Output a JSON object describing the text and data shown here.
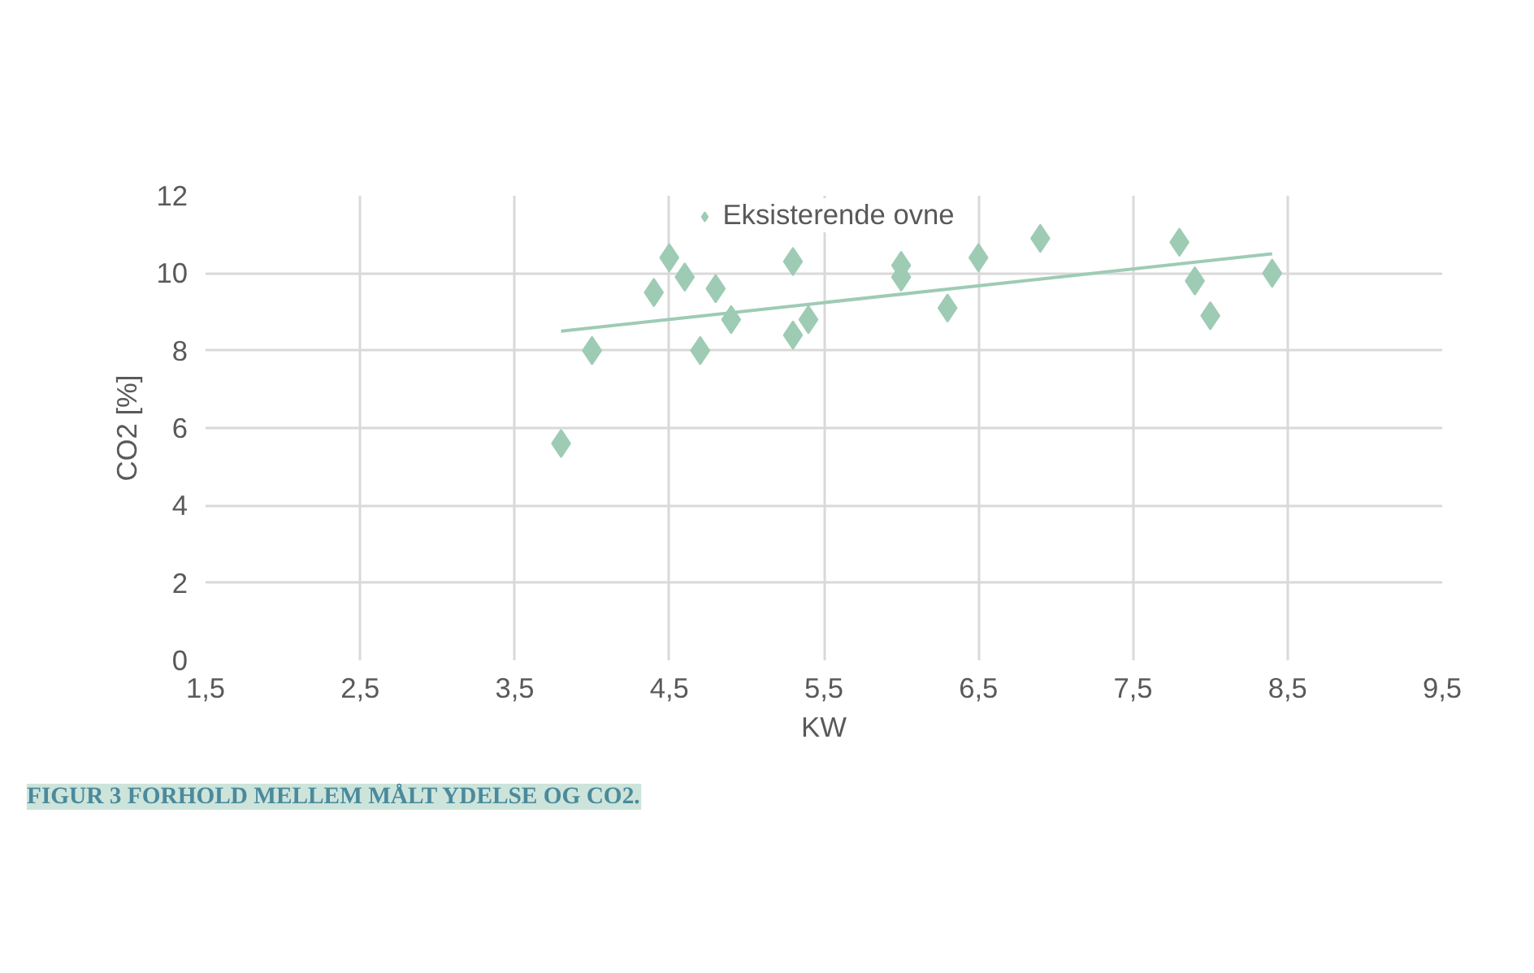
{
  "chart_data": {
    "type": "scatter",
    "xlabel": "KW",
    "ylabel": "CO2 [%]",
    "annotations": [
      "FIGUR 3 FORHOLD MELLEM MÅLT YDELSE OG CO2."
    ],
    "series": [
      {
        "name": "Eksisterende ovne",
        "color": "#9ecbb4",
        "marker": "diamond",
        "x": [
          3.8,
          4.0,
          4.4,
          4.5,
          4.6,
          4.7,
          4.8,
          4.9,
          5.3,
          5.3,
          5.4,
          6.0,
          6.0,
          6.3,
          6.5,
          6.9,
          7.8,
          7.9,
          8.0,
          8.4
        ],
        "values": [
          5.6,
          8.0,
          9.5,
          10.4,
          9.9,
          8.0,
          9.6,
          8.8,
          10.3,
          8.4,
          8.8,
          10.2,
          9.9,
          9.1,
          10.4,
          10.9,
          10.8,
          9.8,
          8.9,
          10.0
        ]
      },
      {
        "type": "line",
        "color": "#9ecbb4",
        "x": [
          3.8,
          8.4
        ],
        "values": [
          8.5,
          10.5
        ]
      }
    ],
    "xlim": [
      1.5,
      9.5
    ],
    "xticks": [
      {
        "value": 1.5,
        "label": "1,5"
      },
      {
        "value": 2.5,
        "label": "2,5"
      },
      {
        "value": 3.5,
        "label": "3,5"
      },
      {
        "value": 4.5,
        "label": "4,5"
      },
      {
        "value": 5.5,
        "label": "5,5"
      },
      {
        "value": 6.5,
        "label": "6,5"
      },
      {
        "value": 7.5,
        "label": "7,5"
      },
      {
        "value": 8.5,
        "label": "8,5"
      },
      {
        "value": 9.5,
        "label": "9,5"
      }
    ],
    "ylim": [
      0,
      12
    ],
    "yticks": [
      0,
      2,
      4,
      6,
      8,
      10,
      12
    ],
    "grid": true,
    "legend": "top"
  }
}
